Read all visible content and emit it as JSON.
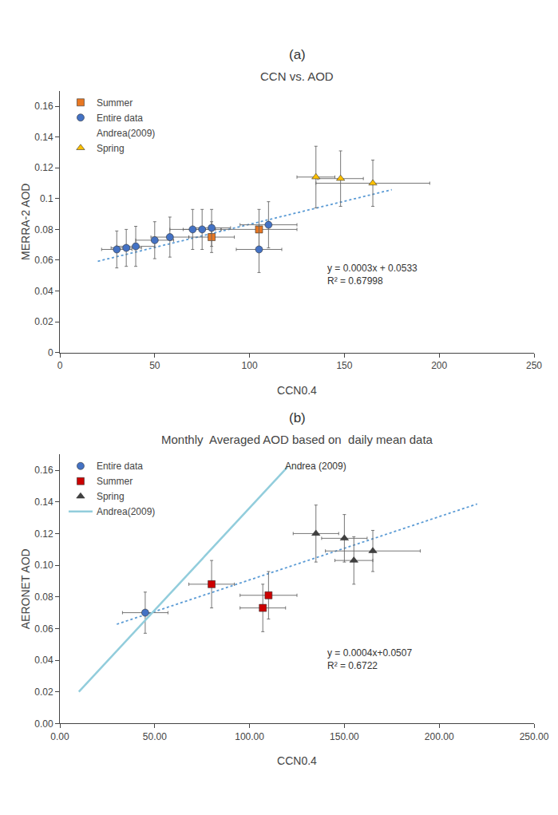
{
  "chart_data": [
    {
      "type": "scatter",
      "title": "CCN vs. AOD",
      "subtitle": "(a)",
      "x_label": "CCN0.4",
      "y_label": "MERRA-2 AOD",
      "xlim": [
        0,
        250
      ],
      "ylim": [
        0,
        0.17
      ],
      "xticks": [
        0,
        50,
        100,
        150,
        200,
        250
      ],
      "yticks": [
        0,
        0.02,
        0.04,
        0.06,
        0.08,
        0.1,
        0.12,
        0.14,
        0.16
      ],
      "grid": false,
      "legend": "upper left",
      "series": [
        {
          "type": "line",
          "line_style": "dotted",
          "color": "#5B9BD5",
          "x": [
            20,
            175
          ],
          "values": [
            0.0593,
            0.1058
          ]
        },
        {
          "name": "Summer",
          "type": "scatter",
          "marker": "square",
          "color": "#E87722",
          "x": [
            80,
            105
          ],
          "values": [
            0.075,
            0.08
          ],
          "xerr": [
            12,
            20
          ],
          "yerr": [
            0.01,
            0.013
          ]
        },
        {
          "name": "Entire data",
          "type": "scatter",
          "marker": "circle",
          "color": "#4472C4",
          "x": [
            30,
            35,
            40,
            50,
            58,
            70,
            75,
            80,
            110,
            105
          ],
          "values": [
            0.067,
            0.068,
            0.069,
            0.073,
            0.075,
            0.08,
            0.08,
            0.081,
            0.083,
            0.067
          ],
          "xerr": [
            8,
            8,
            10,
            10,
            10,
            12,
            10,
            10,
            15,
            12
          ],
          "yerr": [
            0.012,
            0.012,
            0.013,
            0.012,
            0.013,
            0.013,
            0.013,
            0.012,
            0.015,
            0.015
          ]
        },
        {
          "name": "Andrea(2009)",
          "type": "line",
          "color": "#FFFFFF",
          "x": [],
          "values": []
        },
        {
          "name": "Spring",
          "type": "scatter",
          "marker": "triangle",
          "color": "#FFC000",
          "x": [
            135,
            148,
            165
          ],
          "values": [
            0.114,
            0.113,
            0.11
          ],
          "xerr": [
            10,
            12,
            30
          ],
          "yerr": [
            0.02,
            0.018,
            0.015
          ]
        }
      ],
      "annotations": [
        {
          "text": "y = 0.0003x + 0.0533\nR² = 0.67998",
          "x": 140,
          "y": 0.042
        }
      ]
    },
    {
      "type": "scatter",
      "title": "Monthly  Averaged AOD based on  daily mean data",
      "subtitle": "(b)",
      "x_label": "CCN0.4",
      "y_label": "AERONET AOD",
      "xlim": [
        0,
        250
      ],
      "ylim": [
        0,
        0.17
      ],
      "xticks": [
        {
          "value": 0,
          "label": "0.00"
        },
        {
          "value": 50,
          "label": "50.00"
        },
        {
          "value": 100,
          "label": "100.00"
        },
        {
          "value": 150,
          "label": "150.00"
        },
        {
          "value": 200,
          "label": "200.00"
        },
        {
          "value": 250,
          "label": "250.00"
        }
      ],
      "yticks": [
        {
          "value": 0,
          "label": "0.00"
        },
        {
          "value": 0.02,
          "label": "0.02"
        },
        {
          "value": 0.04,
          "label": "0.04"
        },
        {
          "value": 0.06,
          "label": "0.06"
        },
        {
          "value": 0.08,
          "label": "0.08"
        },
        {
          "value": 0.1,
          "label": "0.10"
        },
        {
          "value": 0.12,
          "label": "0.12"
        },
        {
          "value": 0.14,
          "label": "0.14"
        },
        {
          "value": 0.16,
          "label": "0.16"
        }
      ],
      "grid": false,
      "legend": "upper left",
      "series": [
        {
          "type": "line",
          "line_style": "dotted",
          "color": "#5B9BD5",
          "x": [
            30,
            220
          ],
          "values": [
            0.0627,
            0.1387
          ]
        },
        {
          "name": "Entire data",
          "type": "scatter",
          "marker": "circle",
          "color": "#4472C4",
          "x": [
            45
          ],
          "values": [
            0.07
          ],
          "xerr": [
            12
          ],
          "yerr": [
            0.013
          ]
        },
        {
          "name": "Summer",
          "type": "scatter",
          "marker": "square",
          "color": "#CC0000",
          "x": [
            80,
            107,
            110
          ],
          "values": [
            0.088,
            0.073,
            0.081
          ],
          "xerr": [
            12,
            12,
            15
          ],
          "yerr": [
            0.015,
            0.015,
            0.015
          ]
        },
        {
          "name": "Spring",
          "type": "scatter",
          "marker": "triangle",
          "color": "#404040",
          "x": [
            135,
            150,
            155,
            165
          ],
          "values": [
            0.12,
            0.117,
            0.103,
            0.109
          ],
          "xerr": [
            12,
            12,
            10,
            25
          ],
          "yerr": [
            0.018,
            0.015,
            0.015,
            0.013
          ]
        },
        {
          "name": "Andrea(2009)",
          "type": "line",
          "line_style": "solid",
          "color": "#92CDDC",
          "x": [
            10,
            120
          ],
          "values": [
            0.02,
            0.162
          ]
        }
      ],
      "annotations": [
        {
          "text": "Andrea (2009)",
          "x": 118,
          "y": 0.158
        },
        {
          "text": "y = 0.0004x+0.0507\nR² = 0.6722",
          "x": 140,
          "y": 0.032
        }
      ]
    }
  ]
}
